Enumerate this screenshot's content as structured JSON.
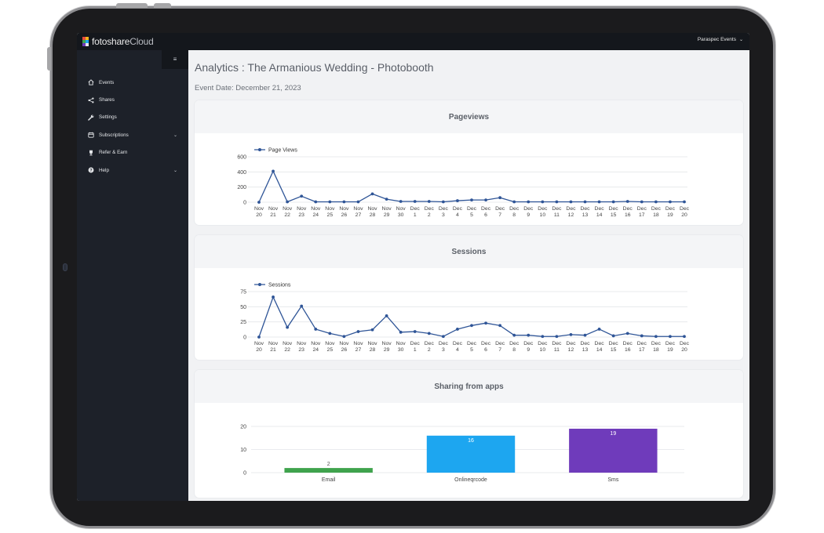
{
  "app": {
    "brand_main": "fotoshare",
    "brand_sub": "Cloud",
    "account_name": "Paraspec Events",
    "colors": {
      "sidebar": "#1d2129",
      "topbar": "#14171c",
      "line": "#2f5597"
    }
  },
  "sidebar": {
    "items": [
      {
        "label": "Events",
        "icon": "home-icon"
      },
      {
        "label": "Shares",
        "icon": "share-icon"
      },
      {
        "label": "Settings",
        "icon": "wrench-icon"
      },
      {
        "label": "Subscriptions",
        "icon": "calendar-icon",
        "has_caret": true
      },
      {
        "label": "Refer & Earn",
        "icon": "trophy-icon"
      },
      {
        "label": "Help",
        "icon": "help-icon",
        "has_caret": true
      }
    ]
  },
  "main": {
    "title": "Analytics : The Armanious Wedding - Photobooth",
    "event_date": "Event Date: December 21, 2023",
    "cards": [
      {
        "title": "Pageviews"
      },
      {
        "title": "Sessions"
      },
      {
        "title": "Sharing from apps"
      }
    ]
  },
  "chart_data": [
    {
      "type": "line",
      "legend": "Page Views",
      "legend_position": "top-left",
      "ylim": [
        0,
        600
      ],
      "yticks": [
        0,
        200,
        400,
        600
      ],
      "categories": [
        [
          "Nov",
          "20"
        ],
        [
          "Nov",
          "21"
        ],
        [
          "Nov",
          "22"
        ],
        [
          "Nov",
          "23"
        ],
        [
          "Nov",
          "24"
        ],
        [
          "Nov",
          "25"
        ],
        [
          "Nov",
          "26"
        ],
        [
          "Nov",
          "27"
        ],
        [
          "Nov",
          "28"
        ],
        [
          "Nov",
          "29"
        ],
        [
          "Nov",
          "30"
        ],
        [
          "Dec",
          "1"
        ],
        [
          "Dec",
          "2"
        ],
        [
          "Dec",
          "3"
        ],
        [
          "Dec",
          "4"
        ],
        [
          "Dec",
          "5"
        ],
        [
          "Dec",
          "6"
        ],
        [
          "Dec",
          "7"
        ],
        [
          "Dec",
          "8"
        ],
        [
          "Dec",
          "9"
        ],
        [
          "Dec",
          "10"
        ],
        [
          "Dec",
          "11"
        ],
        [
          "Dec",
          "12"
        ],
        [
          "Dec",
          "13"
        ],
        [
          "Dec",
          "14"
        ],
        [
          "Dec",
          "15"
        ],
        [
          "Dec",
          "16"
        ],
        [
          "Dec",
          "17"
        ],
        [
          "Dec",
          "18"
        ],
        [
          "Dec",
          "19"
        ],
        [
          "Dec",
          "20"
        ]
      ],
      "series": [
        {
          "name": "Page Views",
          "color": "#2f5597",
          "values": [
            0,
            410,
            5,
            80,
            5,
            5,
            5,
            5,
            110,
            40,
            10,
            10,
            10,
            5,
            20,
            30,
            30,
            60,
            5,
            5,
            5,
            5,
            5,
            5,
            5,
            5,
            10,
            5,
            5,
            5,
            5
          ]
        }
      ],
      "grid": true
    },
    {
      "type": "line",
      "legend": "Sessions",
      "legend_position": "top-left",
      "ylim": [
        0,
        75
      ],
      "yticks": [
        0,
        25,
        50,
        75
      ],
      "categories": [
        [
          "Nov",
          "20"
        ],
        [
          "Nov",
          "21"
        ],
        [
          "Nov",
          "22"
        ],
        [
          "Nov",
          "23"
        ],
        [
          "Nov",
          "24"
        ],
        [
          "Nov",
          "25"
        ],
        [
          "Nov",
          "26"
        ],
        [
          "Nov",
          "27"
        ],
        [
          "Nov",
          "28"
        ],
        [
          "Nov",
          "29"
        ],
        [
          "Nov",
          "30"
        ],
        [
          "Dec",
          "1"
        ],
        [
          "Dec",
          "2"
        ],
        [
          "Dec",
          "3"
        ],
        [
          "Dec",
          "4"
        ],
        [
          "Dec",
          "5"
        ],
        [
          "Dec",
          "6"
        ],
        [
          "Dec",
          "7"
        ],
        [
          "Dec",
          "8"
        ],
        [
          "Dec",
          "9"
        ],
        [
          "Dec",
          "10"
        ],
        [
          "Dec",
          "11"
        ],
        [
          "Dec",
          "12"
        ],
        [
          "Dec",
          "13"
        ],
        [
          "Dec",
          "14"
        ],
        [
          "Dec",
          "15"
        ],
        [
          "Dec",
          "16"
        ],
        [
          "Dec",
          "17"
        ],
        [
          "Dec",
          "18"
        ],
        [
          "Dec",
          "19"
        ],
        [
          "Dec",
          "20"
        ]
      ],
      "series": [
        {
          "name": "Sessions",
          "color": "#2f5597",
          "values": [
            0,
            66,
            16,
            51,
            13,
            6,
            1,
            9,
            12,
            35,
            8,
            9,
            6,
            1,
            13,
            19,
            23,
            19,
            3,
            3,
            1,
            1,
            4,
            3,
            13,
            2,
            6,
            2,
            1,
            1,
            1
          ]
        }
      ],
      "grid": true
    },
    {
      "type": "bar",
      "ylim": [
        0,
        20
      ],
      "yticks": [
        0,
        10,
        20
      ],
      "categories": [
        "Email",
        "Onlineqrcode",
        "Sms"
      ],
      "values": [
        2,
        16,
        19
      ],
      "data_labels": [
        "2",
        "16",
        "19"
      ],
      "colors": [
        "#3fa34d",
        "#1da6f0",
        "#6f3bbb"
      ],
      "grid": true
    }
  ]
}
